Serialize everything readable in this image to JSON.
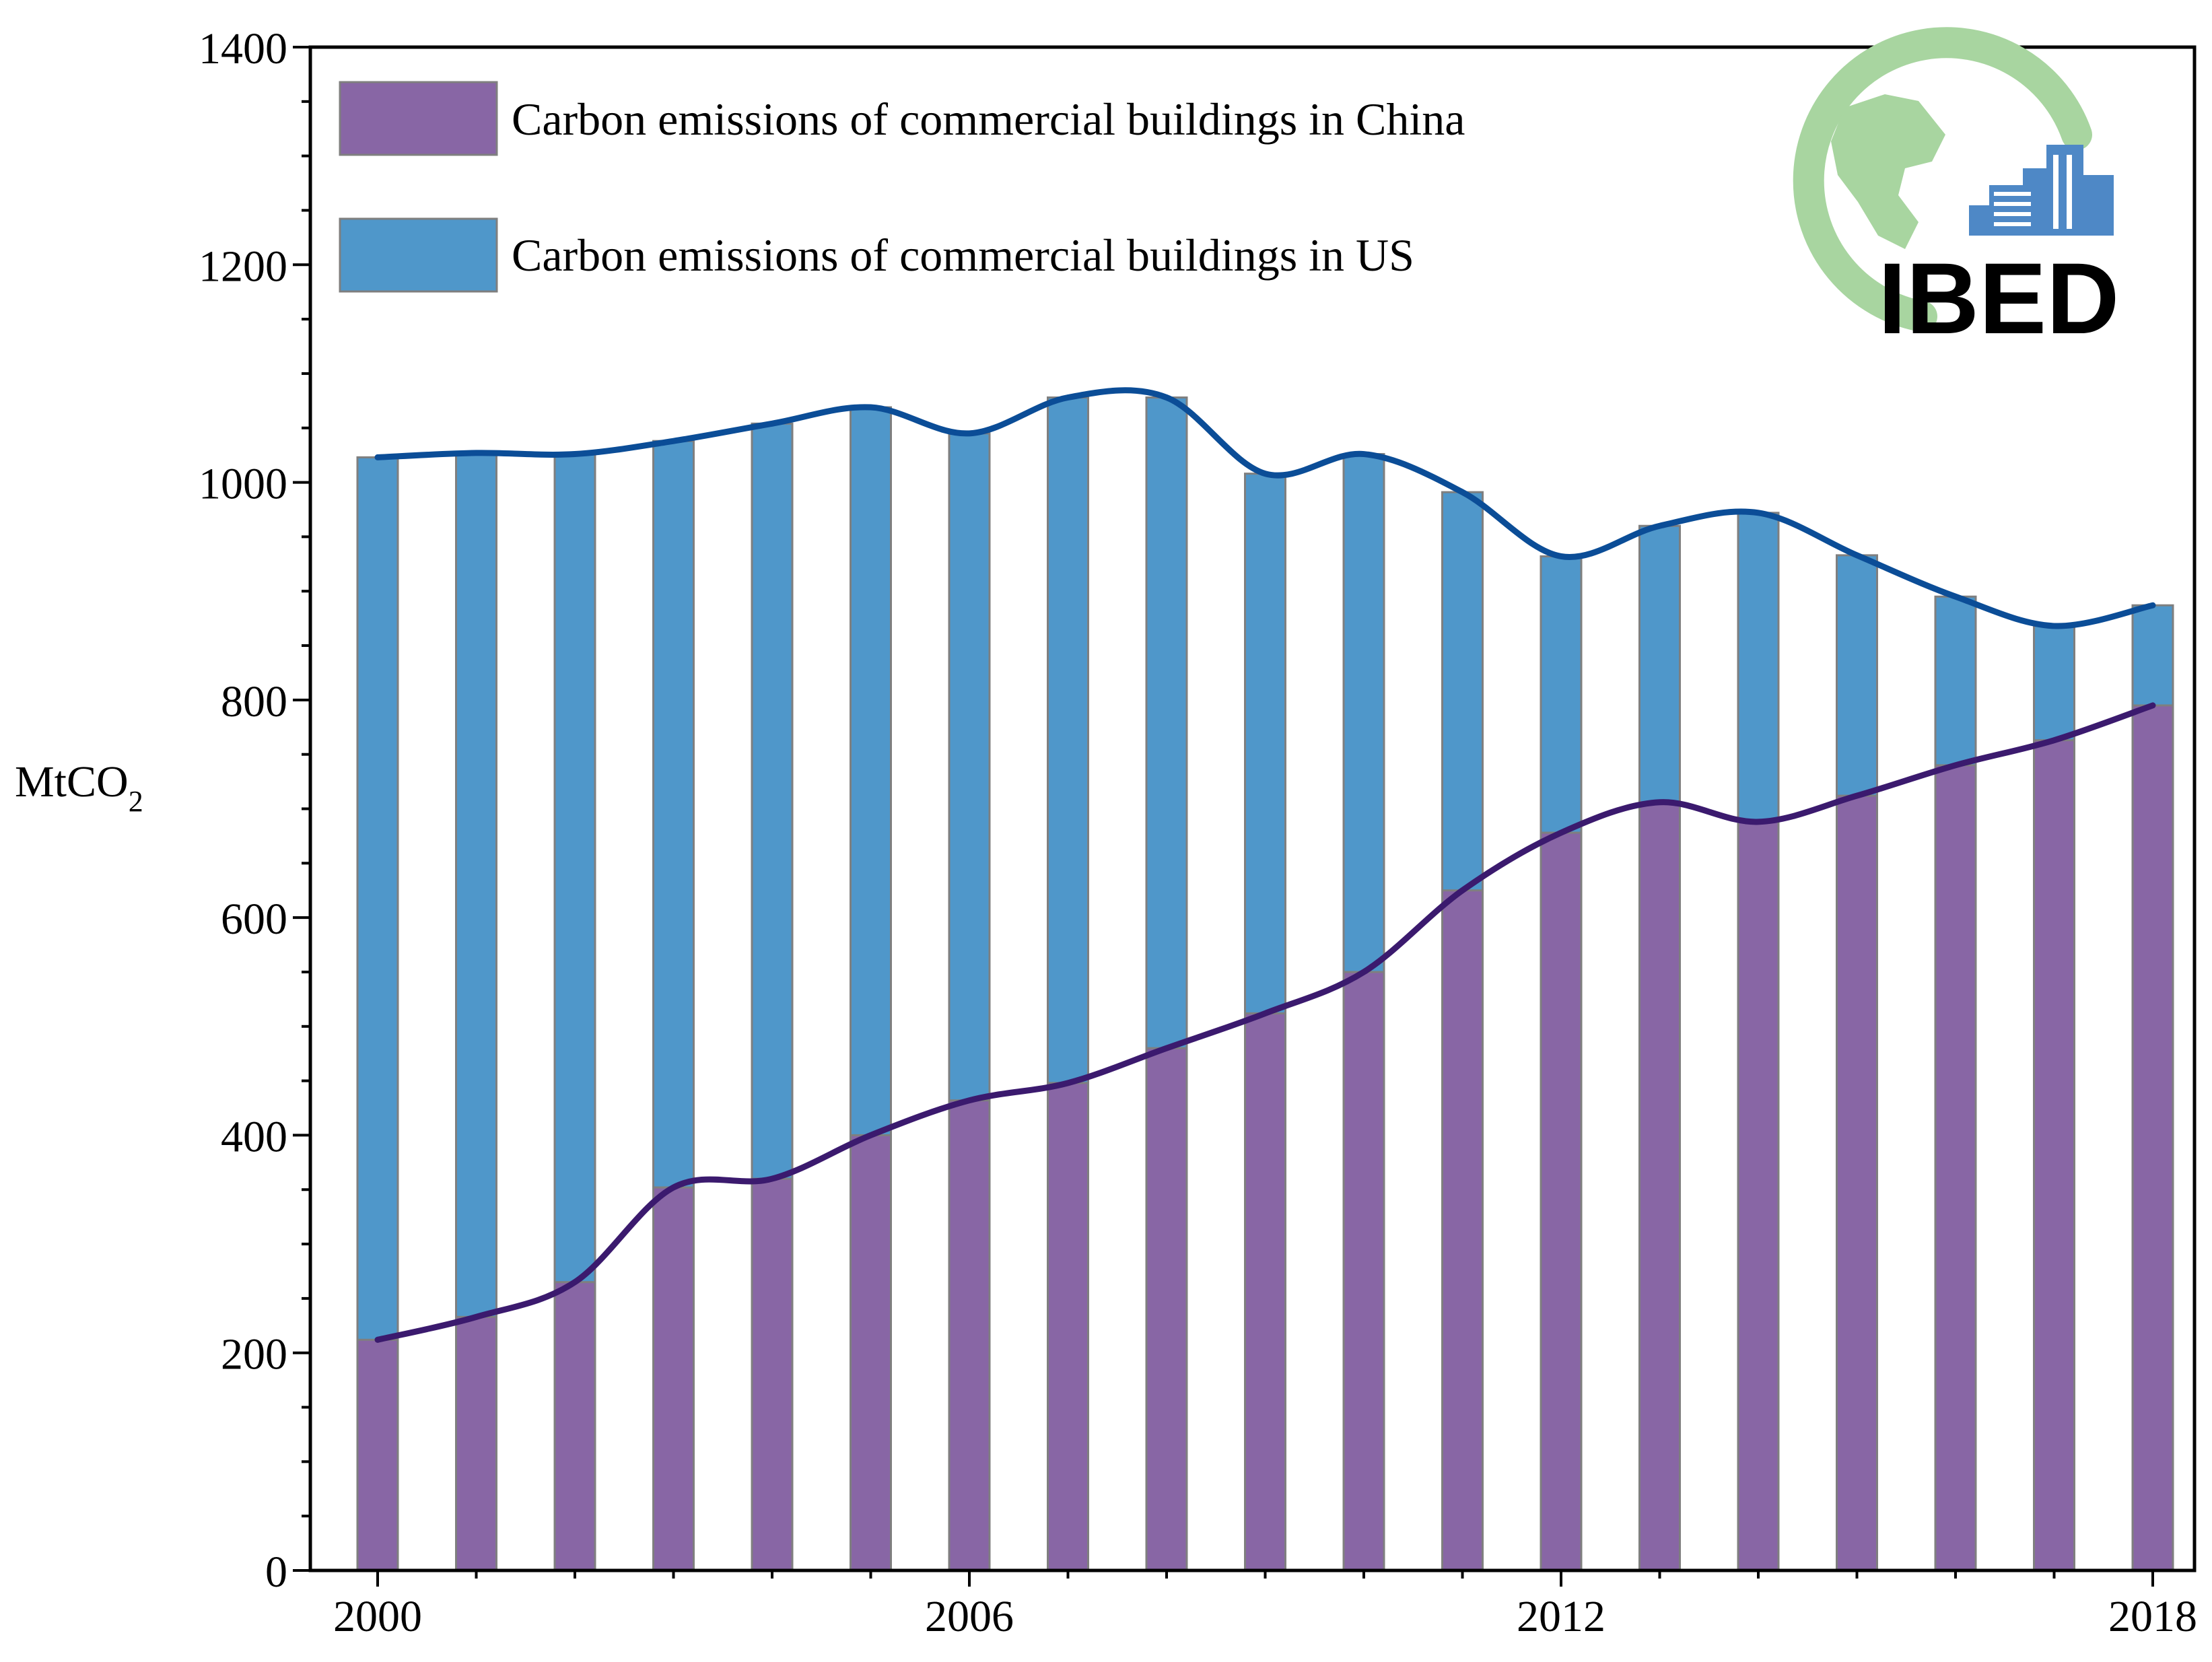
{
  "chart_data": {
    "type": "bar",
    "title": "",
    "xlabel": "",
    "ylabel": "MtCO",
    "ylabel_subscript": "2",
    "ylim": [
      0,
      1400
    ],
    "yticks": [
      0,
      200,
      400,
      600,
      800,
      1000,
      1200,
      1400
    ],
    "xticks": [
      "2000",
      "2006",
      "2012",
      "2018"
    ],
    "categories": [
      "2000",
      "2001",
      "2002",
      "2003",
      "2004",
      "2005",
      "2006",
      "2007",
      "2008",
      "2009",
      "2010",
      "2011",
      "2012",
      "2013",
      "2014",
      "2015",
      "2016",
      "2017",
      "2018"
    ],
    "legend_position": "top-left",
    "series": [
      {
        "name": "Carbon emissions of commercial buildings in China",
        "color": "#8866A5",
        "line_color": "#3B1A6E",
        "values": [
          212,
          233,
          265,
          352,
          360,
          400,
          432,
          448,
          480,
          512,
          550,
          625,
          678,
          706,
          688,
          712,
          740,
          763,
          795
        ]
      },
      {
        "name": "Carbon emissions of commercial buildings in US",
        "color": "#4F97CA",
        "line_color": "#0B4D97",
        "values": [
          1023,
          1027,
          1026,
          1038,
          1054,
          1069,
          1045,
          1078,
          1078,
          1008,
          1026,
          991,
          932,
          960,
          972,
          933,
          895,
          868,
          887
        ]
      }
    ]
  },
  "logo": {
    "text": "IBED",
    "globe_color": "#A8D5A0",
    "building_color": "#4E88C6",
    "text_color": "#3F6EA8"
  }
}
